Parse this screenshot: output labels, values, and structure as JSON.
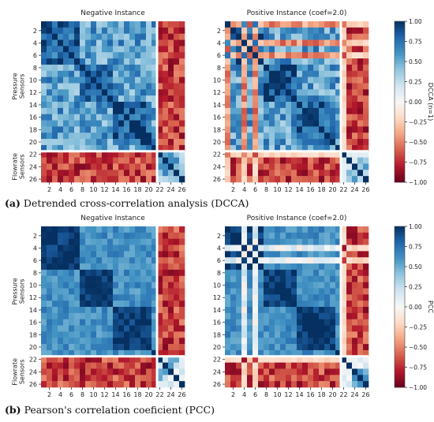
{
  "panels": [
    {
      "caption_label": "(a)",
      "caption_text": "Detrended cross-correlation analysis (DCCA)",
      "colorbar_label": "DCCA (n=1)",
      "heatmaps": [
        {
          "title": "Negative Instance"
        },
        {
          "title": "Positive Instance (coef=2.0)"
        }
      ]
    },
    {
      "caption_label": "(b)",
      "caption_text": "Pearson's correlation coeficient (PCC)",
      "colorbar_label": "PCC",
      "heatmaps": [
        {
          "title": "Negative Instance"
        },
        {
          "title": "Positive Instance (coef=2.0)"
        }
      ]
    }
  ],
  "group_labels": {
    "pressure": [
      "Pressure",
      "Sensors"
    ],
    "flowrate": [
      "Flowrate",
      "Sensors"
    ]
  },
  "y_ticks": [
    "2",
    "4",
    "6",
    "8",
    "10",
    "12",
    "14",
    "16",
    "18",
    "20",
    "22",
    "24",
    "26"
  ],
  "x_ticks": [
    "2",
    "4",
    "6",
    "8",
    "10",
    "12",
    "14",
    "16",
    "18",
    "20",
    "22",
    "24",
    "26"
  ],
  "colorbar_ticks": [
    "1.00",
    "0.75",
    "0.50",
    "0.25",
    "0.00",
    "−0.25",
    "−0.50",
    "−0.75",
    "−1.00"
  ],
  "colors": {
    "colormap": [
      "#67001f",
      "#b2182b",
      "#d6604d",
      "#f4a582",
      "#fddbc7",
      "#f7f7f7",
      "#d1e5f0",
      "#92c5de",
      "#4393c3",
      "#2166ac",
      "#053061"
    ]
  },
  "chart_data": [
    {
      "type": "heatmap",
      "title": "Negative Instance",
      "x": [
        "1..26 (sensor index)"
      ],
      "colorbar": "DCCA (n=1)",
      "vlim": [
        -1,
        1
      ],
      "groups": {
        "pressure_sensors": [
          1,
          21
        ],
        "flowrate_sensors": [
          22,
          26
        ]
      },
      "blocks": {
        "pressure_pressure": 0.75,
        "pressure_flow": -0.6,
        "flow_flow": 0.55,
        "diagonal": 1.0
      }
    },
    {
      "type": "heatmap",
      "title": "Positive Instance (coef=2.0)",
      "colorbar": "DCCA (n=1)",
      "vlim": [
        -1,
        1
      ],
      "groups": {
        "pressure_sensors": [
          1,
          21
        ],
        "flowrate_sensors": [
          22,
          26
        ]
      },
      "blocks": {
        "pressure_pressure": 0.65,
        "pressure_flow": -0.7,
        "flow_flow": 0.6,
        "anomalous_sensors": [
          1,
          4,
          6,
          22
        ]
      }
    },
    {
      "type": "heatmap",
      "title": "Negative Instance",
      "colorbar": "PCC",
      "vlim": [
        -1,
        1
      ],
      "groups": {
        "pressure_sensors": [
          1,
          21
        ],
        "flowrate_sensors": [
          22,
          26
        ]
      },
      "blocks": {
        "pressure_pressure": 0.85,
        "pressure_flow": -0.75,
        "flow_flow": 0.55,
        "diagonal": 1.0
      }
    },
    {
      "type": "heatmap",
      "title": "Positive Instance (coef=2.0)",
      "colorbar": "PCC",
      "vlim": [
        -1,
        1
      ],
      "groups": {
        "pressure_sensors": [
          1,
          21
        ],
        "flowrate_sensors": [
          22,
          26
        ]
      },
      "blocks": {
        "pressure_pressure": 0.85,
        "pressure_flow": -0.75,
        "flow_flow": 0.55,
        "anomalous_sensors": [
          4,
          6,
          22
        ]
      }
    }
  ]
}
